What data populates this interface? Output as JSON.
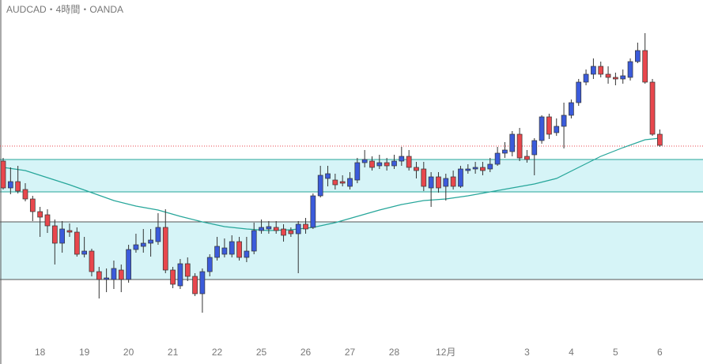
{
  "chart_data": {
    "type": "candlestick",
    "title": "AUDCAD・4時間・OANDA",
    "categories": [
      null,
      null,
      null,
      null,
      null,
      "18",
      null,
      null,
      null,
      null,
      null,
      "19",
      null,
      null,
      null,
      null,
      null,
      "20",
      null,
      null,
      null,
      null,
      null,
      "21",
      null,
      null,
      null,
      null,
      null,
      "22",
      null,
      null,
      null,
      null,
      null,
      "25",
      null,
      null,
      null,
      null,
      null,
      "26",
      null,
      null,
      null,
      null,
      null,
      "27",
      null,
      null,
      null,
      null,
      null,
      "28",
      null,
      null,
      null,
      null,
      null,
      null,
      "12月",
      null,
      null,
      null,
      null,
      null,
      null,
      null,
      null,
      null,
      null,
      "3",
      null,
      null,
      null,
      null,
      null,
      "4",
      null,
      null,
      null,
      null,
      null,
      "5",
      null,
      null,
      null,
      null,
      null,
      "6"
    ],
    "open": [
      257,
      223,
      231,
      221,
      209,
      193,
      189,
      175,
      153,
      169,
      167,
      139,
      143,
      117,
      107,
      107,
      119,
      107,
      145,
      149,
      153,
      155,
      173,
      119,
      99,
      127,
      111,
      89,
      117,
      135,
      139,
      139,
      155,
      135,
      143,
      169,
      171,
      173,
      171,
      169,
      165,
      177,
      173,
      213,
      235,
      233,
      231,
      225,
      233,
      255,
      257,
      251,
      255,
      251,
      257,
      263,
      249,
      247,
      223,
      237,
      225,
      237,
      225,
      245,
      247,
      249,
      247,
      253,
      267,
      269,
      291,
      263,
      265,
      283,
      313,
      293,
      301,
      315,
      331,
      357,
      367,
      377,
      367,
      363,
      361,
      363,
      383,
      397,
      357,
      291
    ],
    "high": [
      261,
      249,
      251,
      229,
      213,
      199,
      196,
      183,
      181,
      178,
      173,
      161,
      146,
      123,
      121,
      131,
      126,
      151,
      165,
      171,
      171,
      191,
      196,
      123,
      133,
      135,
      115,
      121,
      139,
      161,
      159,
      163,
      161,
      161,
      179,
      183,
      181,
      181,
      177,
      173,
      181,
      185,
      216,
      251,
      251,
      241,
      239,
      243,
      261,
      271,
      263,
      265,
      261,
      265,
      275,
      271,
      256,
      256,
      243,
      243,
      241,
      245,
      251,
      253,
      256,
      256,
      261,
      275,
      281,
      295,
      299,
      271,
      286,
      315,
      317,
      311,
      331,
      335,
      361,
      373,
      387,
      383,
      377,
      369,
      373,
      387,
      407,
      419,
      361,
      297
    ],
    "low": [
      221,
      215,
      216,
      206,
      181,
      161,
      166,
      126,
      141,
      161,
      136,
      135,
      111,
      83,
      91,
      95,
      91,
      103,
      141,
      141,
      136,
      151,
      115,
      96,
      95,
      105,
      86,
      65,
      111,
      131,
      135,
      135,
      131,
      129,
      139,
      165,
      165,
      165,
      155,
      161,
      115,
      165,
      171,
      211,
      225,
      221,
      225,
      221,
      229,
      249,
      245,
      247,
      245,
      247,
      251,
      245,
      235,
      219,
      199,
      217,
      207,
      221,
      223,
      241,
      241,
      239,
      243,
      251,
      261,
      263,
      257,
      255,
      239,
      279,
      285,
      289,
      273,
      311,
      327,
      353,
      361,
      363,
      355,
      353,
      355,
      359,
      381,
      355,
      289,
      275
    ],
    "close": [
      223,
      231,
      219,
      209,
      193,
      186,
      175,
      153,
      171,
      167,
      139,
      143,
      117,
      107,
      109,
      121,
      107,
      145,
      151,
      153,
      157,
      173,
      119,
      101,
      127,
      111,
      89,
      117,
      135,
      149,
      147,
      155,
      135,
      143,
      169,
      173,
      174,
      169,
      163,
      165,
      177,
      171,
      213,
      239,
      241,
      227,
      229,
      235,
      255,
      259,
      249,
      255,
      251,
      257,
      263,
      249,
      245,
      225,
      237,
      223,
      235,
      225,
      247,
      247,
      249,
      245,
      253,
      267,
      271,
      291,
      261,
      259,
      283,
      313,
      291,
      301,
      315,
      331,
      357,
      367,
      377,
      367,
      363,
      361,
      365,
      383,
      397,
      357,
      291,
      277
    ],
    "up_color": "#3b5bdb",
    "down_color": "#e8474d",
    "moving_average": {
      "color": "#26a69a",
      "x": [
        0,
        3,
        6,
        9,
        12,
        15,
        18,
        21,
        24,
        27,
        30,
        33,
        36,
        39,
        42,
        45,
        48,
        51,
        54,
        57,
        60,
        63,
        66,
        69,
        72,
        75,
        78,
        81,
        84,
        87,
        89
      ],
      "values": [
        249,
        245,
        236,
        227,
        217,
        207,
        200,
        195,
        187,
        180,
        174,
        171,
        169,
        170,
        173,
        179,
        187,
        195,
        202,
        207,
        209,
        213,
        218,
        223,
        228,
        235,
        249,
        263,
        274,
        284,
        286
      ]
    },
    "zones": [
      {
        "top": 259,
        "bottom": 218,
        "color": "#26a69a"
      },
      {
        "top": 180,
        "bottom": 107,
        "color": "#555555"
      }
    ],
    "zone_fill": "#d6f4f7",
    "price_line": {
      "value": 276,
      "color": "#e8474d"
    },
    "ylim": [
      0,
      461
    ]
  }
}
